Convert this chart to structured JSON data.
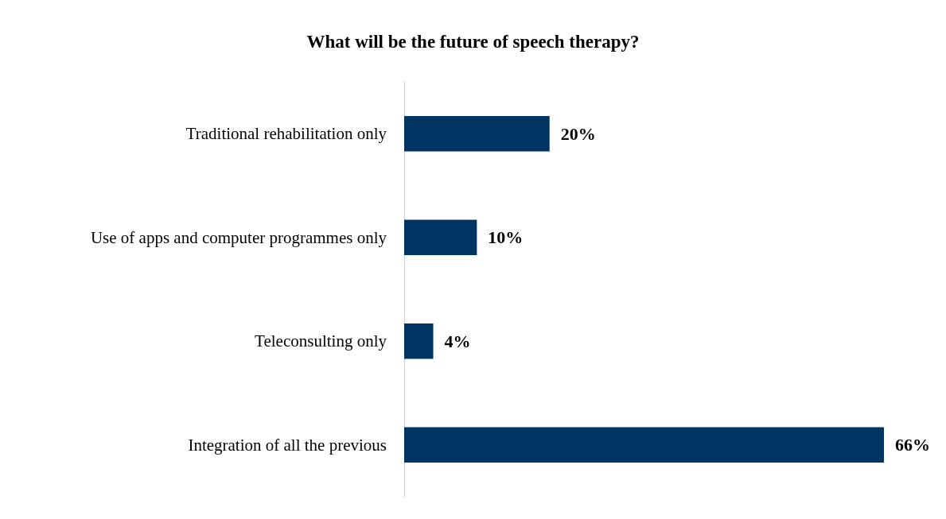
{
  "chart_data": {
    "type": "bar",
    "orientation": "horizontal",
    "title": "What will be the future of speech therapy?",
    "categories": [
      "Traditional rehabilitation only",
      "Use of apps and computer programmes only",
      "Teleconsulting only",
      "Integration of all the previous"
    ],
    "values": [
      20,
      10,
      4,
      66
    ],
    "value_labels": [
      "20%",
      "10%",
      "4%",
      "66%"
    ],
    "color": "#003462",
    "grid": false
  }
}
